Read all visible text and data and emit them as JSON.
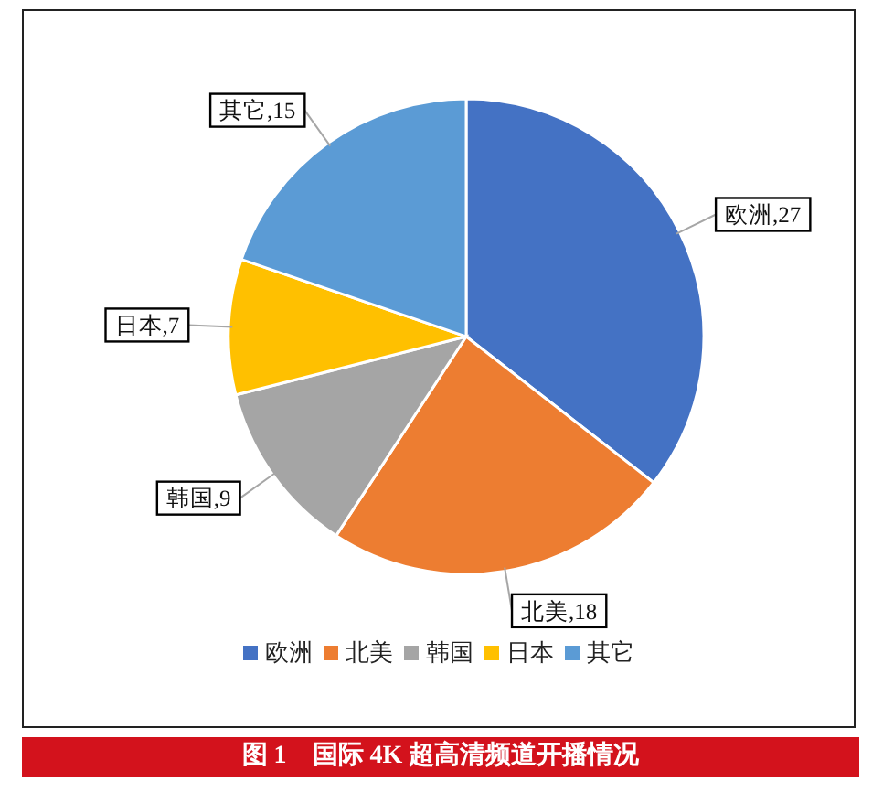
{
  "chart_data": {
    "type": "pie",
    "title": "图 1　国际 4K 超高清频道开播情况",
    "categories": [
      "欧洲",
      "北美",
      "韩国",
      "日本",
      "其它"
    ],
    "values": [
      27,
      18,
      9,
      7,
      15
    ],
    "value_labels": [
      "欧洲,27",
      "北美,18",
      "韩国,9",
      "日本,7",
      "其它,15"
    ],
    "colors": [
      "#4472c4",
      "#ed7d31",
      "#a5a5a5",
      "#ffc000",
      "#5b9bd5"
    ],
    "legend": "bottom"
  }
}
